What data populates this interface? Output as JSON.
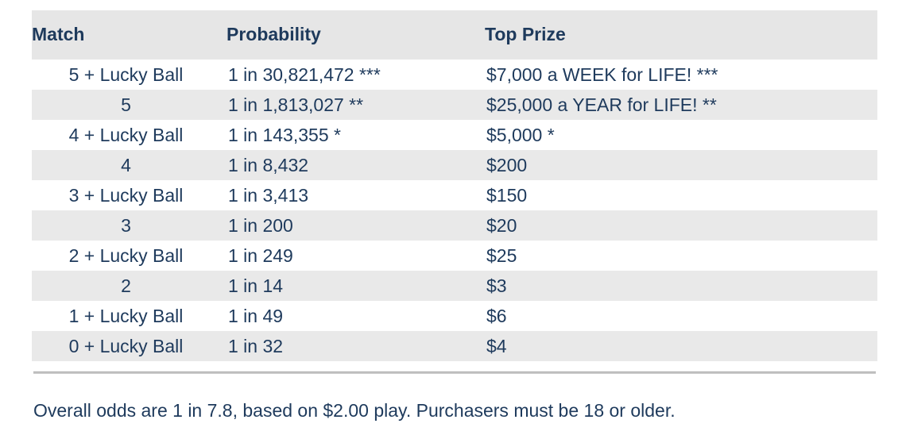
{
  "header": {
    "match": "Match",
    "probability": "Probability",
    "top_prize": "Top Prize"
  },
  "rows": [
    {
      "match": "5 + Lucky Ball",
      "probability": "1 in 30,821,472 ***",
      "prize": "$7,000 a WEEK for LIFE! ***"
    },
    {
      "match": "5",
      "probability": "1 in 1,813,027 **",
      "prize": "$25,000 a YEAR for LIFE! **"
    },
    {
      "match": "4 + Lucky Ball",
      "probability": "1 in 143,355 *",
      "prize": "$5,000 *"
    },
    {
      "match": "4",
      "probability": "1 in 8,432",
      "prize": "$200"
    },
    {
      "match": "3 + Lucky Ball",
      "probability": "1 in 3,413",
      "prize": "$150"
    },
    {
      "match": "3",
      "probability": "1 in 200",
      "prize": "$20"
    },
    {
      "match": "2 + Lucky Ball",
      "probability": "1 in 249",
      "prize": "$25"
    },
    {
      "match": "2",
      "probability": "1 in 14",
      "prize": "$3"
    },
    {
      "match": "1 + Lucky Ball",
      "probability": "1 in 49",
      "prize": "$6"
    },
    {
      "match": "0 + Lucky Ball",
      "probability": "1 in 32",
      "prize": "$4"
    }
  ],
  "footer": {
    "note": "Overall odds are 1 in 7.8, based on $2.00 play. Purchasers must be 18 or older."
  },
  "colors": {
    "text": "#1e3a5c",
    "header_bg": "#e6e6e6",
    "stripe_bg": "#e9e9e9"
  }
}
